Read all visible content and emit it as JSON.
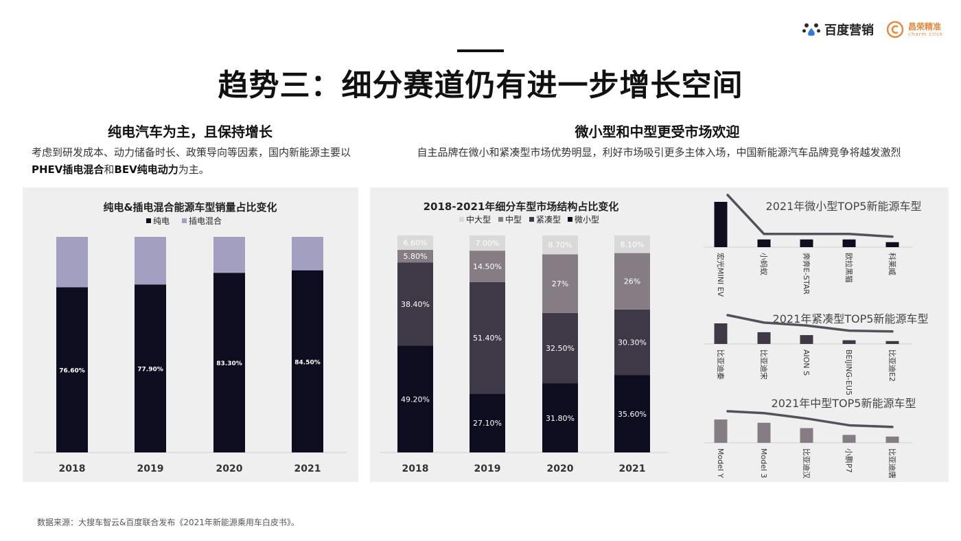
{
  "logos": {
    "baidu": "百度营销",
    "charm_main": "昌荣精准",
    "charm_sub": "charm click"
  },
  "title": "趋势三：细分赛道仍有进一步增长空间",
  "left": {
    "subtitle": "纯电汽车为主，且保持增长",
    "desc_pre": "考虑到研发成本、动力储备时长、政策导向等因素，国内新能源主要以",
    "desc_b1": "PHEV插电混合",
    "desc_mid": "和",
    "desc_b2": "BEV纯电动力",
    "desc_post": "为主。"
  },
  "right": {
    "subtitle": "微小型和中型更受市场欢迎",
    "desc": "自主品牌在微小和紧凑型市场优势明显，利好市场吸引更多主体入场，中国新能源汽车品牌竞争将越发激烈"
  },
  "footer": "数据来源：大搜车智云&百度联合发布《2021年新能源乘用车白皮书》。",
  "colors": {
    "dark": "#0d0d1f",
    "purple": "#a29fc0",
    "compact": "#3f3846",
    "mid": "#857d83",
    "large": "#d9d9d9",
    "line": "#55505a",
    "bar_small": "#0d0d1f",
    "bar_compact": "#3f3846",
    "bar_mid": "#857d83"
  },
  "chart_data": [
    {
      "type": "bar",
      "stacked": true,
      "title": "纯电&插电混合能源车型销量占比变化",
      "categories": [
        "2018",
        "2019",
        "2020",
        "2021"
      ],
      "series": [
        {
          "name": "纯电",
          "values": [
            76.6,
            77.9,
            83.3,
            84.5
          ],
          "labels": [
            "76.60%",
            "77.90%",
            "83.30%",
            "84.50%"
          ]
        },
        {
          "name": "插电混合",
          "values": [
            23.4,
            22.1,
            16.7,
            15.5
          ],
          "labels": [
            "",
            "",
            "",
            ""
          ]
        }
      ],
      "ylim": [
        0,
        100
      ],
      "legend": "top"
    },
    {
      "type": "bar",
      "stacked": true,
      "title": "2018-2021年细分车型市场结构占比变化",
      "categories": [
        "2018",
        "2019",
        "2020",
        "2021"
      ],
      "series": [
        {
          "name": "微小型",
          "values": [
            49.2,
            27.1,
            31.8,
            35.6
          ],
          "labels": [
            "49.20%",
            "27.10%",
            "31.80%",
            "35.60%"
          ]
        },
        {
          "name": "紧凑型",
          "values": [
            38.4,
            51.4,
            32.5,
            30.3
          ],
          "labels": [
            "38.40%",
            "51.40%",
            "32.50%",
            "30.30%"
          ]
        },
        {
          "name": "中型",
          "values": [
            5.8,
            14.5,
            27,
            26
          ],
          "labels": [
            "5.80%",
            "14.50%",
            "27%",
            "26%"
          ]
        },
        {
          "name": "中大型",
          "values": [
            6.6,
            7,
            8.7,
            8.1
          ],
          "labels": [
            "6.60%",
            "7.00%",
            "8.70%",
            "8.10%"
          ]
        }
      ],
      "ylim": [
        0,
        100
      ],
      "legend_order": [
        "中大型",
        "中型",
        "紧凑型",
        "微小型"
      ],
      "legend": "top"
    },
    {
      "type": "bar",
      "title": "2021年微小型TOP5新能源车型",
      "categories": [
        "宏光MINI EV",
        "小蚂蚁",
        "奔奔E-STAR",
        "欧拉黑猫",
        "科莱威"
      ],
      "values": [
        100,
        17,
        17,
        17,
        11
      ],
      "trend_line": true
    },
    {
      "type": "bar",
      "title": "2021年紧凑型TOP5新能源车型",
      "categories": [
        "比亚迪秦",
        "比亚迪宋",
        "AION S",
        "BEIJING-EU5",
        "比亚迪E2"
      ],
      "values": [
        100,
        57,
        43,
        18,
        14
      ],
      "trend_line": true
    },
    {
      "type": "bar",
      "title": "2021年中型TOP5新能源车型",
      "categories": [
        "Model Y",
        "Model 3",
        "比亚迪汉",
        "小鹏P7",
        "比亚迪唐"
      ],
      "values": [
        100,
        86,
        63,
        34,
        27
      ],
      "trend_line": true
    }
  ]
}
